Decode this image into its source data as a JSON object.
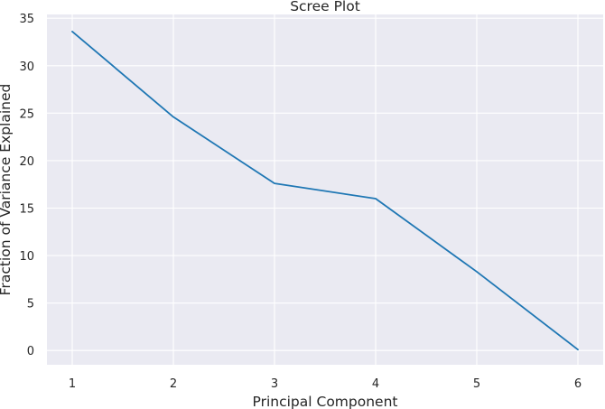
{
  "chart_data": {
    "type": "line",
    "title": "Scree Plot",
    "xlabel": "Principal Component",
    "ylabel": "Fraction of Variance Explained",
    "x": [
      1,
      2,
      3,
      4,
      5,
      6
    ],
    "series": [
      {
        "values": [
          33.6,
          24.6,
          17.6,
          16.0,
          8.3,
          0.1
        ],
        "color": "#1f77b4"
      }
    ],
    "xticks": [
      "1",
      "2",
      "3",
      "4",
      "5",
      "6"
    ],
    "yticks": [
      "0",
      "5",
      "10",
      "15",
      "20",
      "25",
      "30",
      "35"
    ],
    "xlim": [
      0.75,
      6.25
    ],
    "ylim": [
      -1.5,
      35.4
    ],
    "grid": true,
    "style": {
      "background": "#eaeaf2",
      "grid_color": "#ffffff",
      "text_color": "#262626"
    }
  }
}
